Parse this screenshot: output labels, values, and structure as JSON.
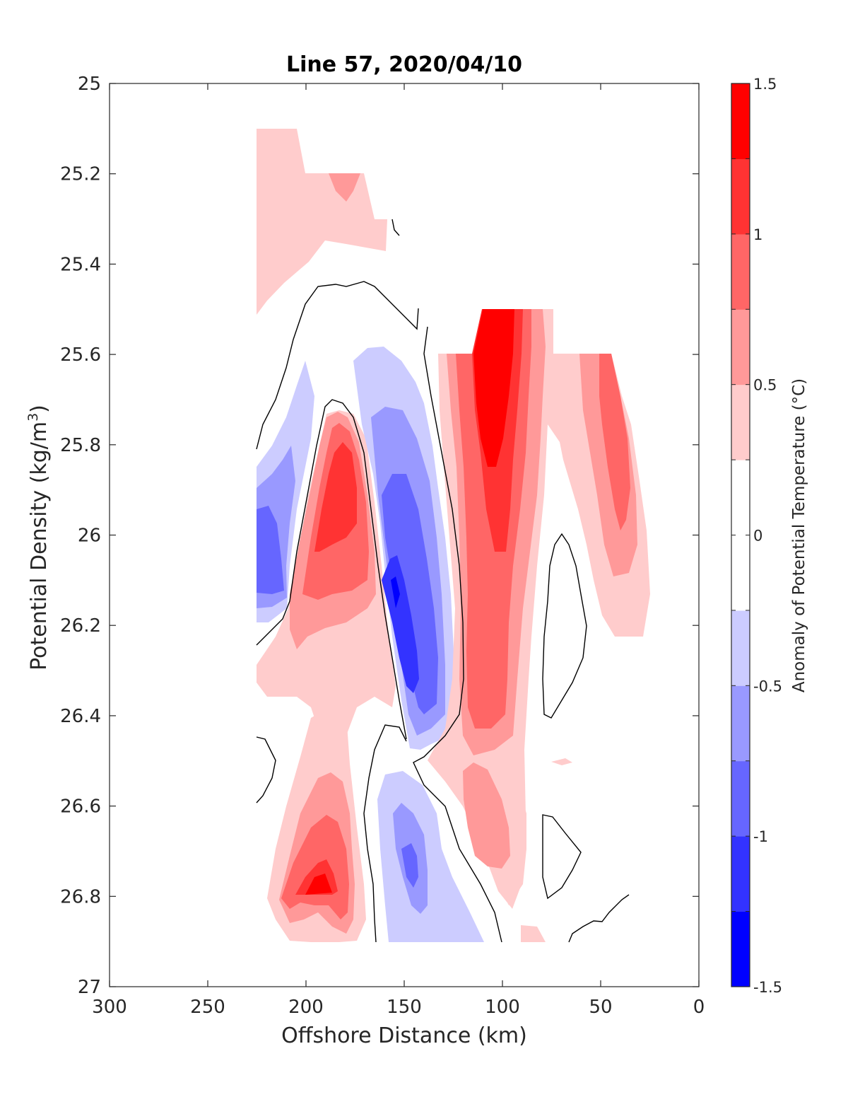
{
  "chart_data": {
    "type": "filled-contour",
    "title": "Line 57, 2020/04/10",
    "xlabel": "Offshore Distance (km)",
    "ylabel": "Potential Density (kg/m3)",
    "ylabel_main": "Potential Density (kg/m",
    "ylabel_sup": "3",
    "ylabel_end": ")",
    "colorbar_label": "Anomaly of Potential Temperature (°C)",
    "xlim": [
      300,
      0
    ],
    "ylim": [
      27,
      25
    ],
    "x_direction": "reversed",
    "y_direction": "reversed",
    "xticks": [
      300,
      250,
      200,
      150,
      100,
      50,
      0
    ],
    "xtick_labels": [
      "300",
      "250",
      "200",
      "150",
      "100",
      "50",
      "0"
    ],
    "yticks": [
      25,
      25.2,
      25.4,
      25.6,
      25.8,
      26,
      26.2,
      26.4,
      26.6,
      26.8,
      27
    ],
    "ytick_labels": [
      "25",
      "25.2",
      "25.4",
      "25.6",
      "25.8",
      "26",
      "26.2",
      "26.4",
      "26.6",
      "26.8",
      "27"
    ],
    "colorbar": {
      "range": [
        -1.5,
        1.5
      ],
      "step": 0.25,
      "ticks": [
        1.5,
        1,
        0.5,
        0,
        -0.5,
        -1,
        -1.5
      ],
      "tick_labels": [
        "1.5",
        "1",
        "0.5",
        "0",
        "-0.5",
        "-1",
        "-1.5"
      ],
      "colors": [
        "#0000ff",
        "#3333ff",
        "#6666ff",
        "#9999ff",
        "#ccccff",
        "#ffffff",
        "#ffffff",
        "#ffcccc",
        "#ff9999",
        "#ff6666",
        "#ff3333",
        "#ff0000"
      ]
    },
    "contour_line": "anomaly = 0 (black)",
    "features": [
      {
        "name": "warm anomaly, top-left patch",
        "x_range_km": [
          225,
          160
        ],
        "density_range": [
          25.1,
          25.5
        ],
        "peak_anomaly": 0.75
      },
      {
        "name": "cold anomaly, west",
        "x_range_km": [
          225,
          205
        ],
        "density_range": [
          25.65,
          26.2
        ],
        "peak_anomaly": -1.0
      },
      {
        "name": "warm anomaly core",
        "x_range_km": [
          205,
          160
        ],
        "density_range": [
          25.72,
          26.35
        ],
        "peak_anomaly": 1.25
      },
      {
        "name": "cold anomaly core",
        "x_range_km": [
          168,
          128
        ],
        "density_range": [
          25.6,
          26.5
        ],
        "peak_anomaly": -1.25
      },
      {
        "name": "warm anomaly, nearshore jet",
        "x_range_km": [
          128,
          82
        ],
        "density_range": [
          25.5,
          26.5
        ],
        "peak_anomaly": 1.5
      },
      {
        "name": "warm anomaly, inshore band",
        "x_range_km": [
          95,
          25
        ],
        "density_range": [
          25.6,
          26.25
        ],
        "peak_anomaly": 1.0
      },
      {
        "name": "warm anomaly, deep west",
        "x_range_km": [
          220,
          165
        ],
        "density_range": [
          26.3,
          26.9
        ],
        "peak_anomaly": 1.25
      },
      {
        "name": "cold anomaly, deep",
        "x_range_km": [
          160,
          110
        ],
        "density_range": [
          26.5,
          26.9
        ],
        "peak_anomaly": -0.75
      },
      {
        "name": "warm anomaly, deep nearshore",
        "x_range_km": [
          135,
          80
        ],
        "density_range": [
          26.45,
          26.85
        ],
        "peak_anomaly": 0.75
      }
    ]
  }
}
